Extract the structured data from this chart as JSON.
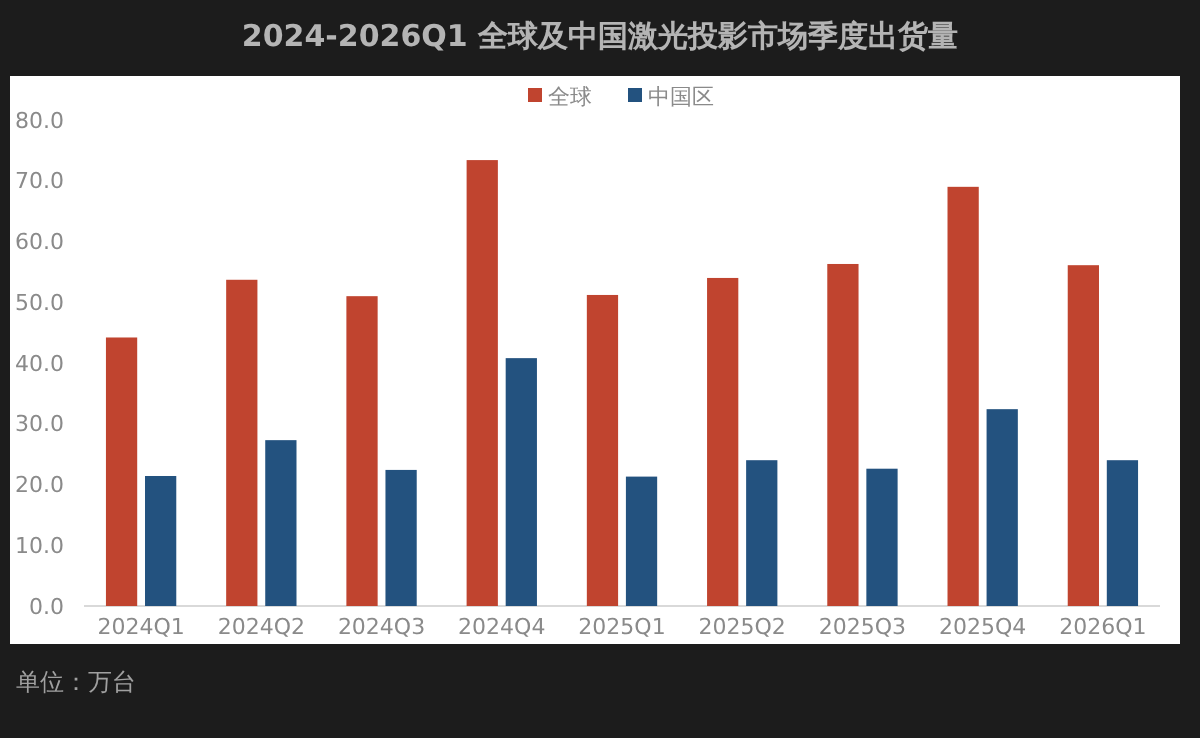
{
  "chart_data": {
    "type": "bar",
    "title": "2024-2026Q1 全球及中国激光投影市场季度出货量",
    "categories": [
      "2024Q1",
      "2024Q2",
      "2024Q3",
      "2024Q4",
      "2025Q1",
      "2025Q2",
      "2025Q3",
      "2025Q4",
      "2026Q1"
    ],
    "series": [
      {
        "name": "全球",
        "color": "#c0442f",
        "values": [
          44.2,
          53.7,
          51.0,
          73.4,
          51.2,
          54.0,
          56.3,
          69.0,
          56.1
        ]
      },
      {
        "name": "中国区",
        "color": "#23527f",
        "values": [
          21.4,
          27.3,
          22.4,
          40.8,
          21.3,
          24.0,
          22.6,
          32.4,
          24.0
        ]
      }
    ],
    "ylim": [
      0,
      80
    ],
    "yticks": [
      {
        "value": 0,
        "label": "0.0"
      },
      {
        "value": 10,
        "label": "10.0"
      },
      {
        "value": 20,
        "label": "20.0"
      },
      {
        "value": 30,
        "label": "30.0"
      },
      {
        "value": 40,
        "label": "40.0"
      },
      {
        "value": 50,
        "label": "50.0"
      },
      {
        "value": 60,
        "label": "60.0"
      },
      {
        "value": 70,
        "label": "70.0"
      },
      {
        "value": 80,
        "label": "80.0"
      }
    ],
    "legend": "top",
    "annotations": [
      "单位：万台"
    ]
  }
}
